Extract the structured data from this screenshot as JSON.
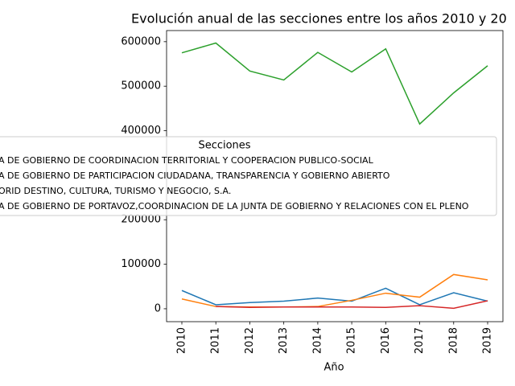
{
  "chart_data": {
    "type": "line",
    "title": "Evolución anual de las secciones entre los años 2010 y 20",
    "x_label": "Año",
    "x": [
      2010,
      2011,
      2012,
      2013,
      2014,
      2015,
      2016,
      2017,
      2018,
      2019
    ],
    "xlim": [
      2009.55,
      2019.45
    ],
    "xticks": [
      2010,
      2011,
      2012,
      2013,
      2014,
      2015,
      2016,
      2017,
      2018,
      2019
    ],
    "ylim": [
      -29000,
      625000
    ],
    "yticks": [
      0,
      100000,
      200000,
      400000,
      500000,
      600000
    ],
    "legend_title": "Secciones",
    "series": [
      {
        "name": "A DE GOBIERNO DE COORDINACION TERRITORIAL Y COOPERACION PUBLICO-SOCIAL",
        "color": "#1f77b4",
        "values": [
          41000,
          9000,
          14000,
          17000,
          24000,
          17000,
          46000,
          9000,
          36000,
          17000
        ]
      },
      {
        "name": "A DE GOBIERNO DE PARTICIPACION CIUDADANA, TRANSPARENCIA Y GOBIERNO ABIERTO",
        "color": "#ff7f0e",
        "values": [
          22000,
          5000,
          4000,
          4000,
          5000,
          19000,
          35000,
          26000,
          77000,
          65000
        ]
      },
      {
        "name": "ORID DESTINO, CULTURA, TURISMO Y NEGOCIO, S.A.",
        "color": "#2ca02c",
        "values": [
          575000,
          597000,
          534000,
          514000,
          576000,
          532000,
          584000,
          415000,
          485000,
          546000
        ]
      },
      {
        "name": "A DE GOBIERNO DE PORTAVOZ,COORDINACION DE LA JUNTA DE GOBIERNO Y RELACIONES CON EL PLENO",
        "color": "#d62728",
        "values": [
          null,
          5000,
          3000,
          4000,
          4000,
          4000,
          3000,
          7000,
          1000,
          18000
        ]
      }
    ]
  }
}
